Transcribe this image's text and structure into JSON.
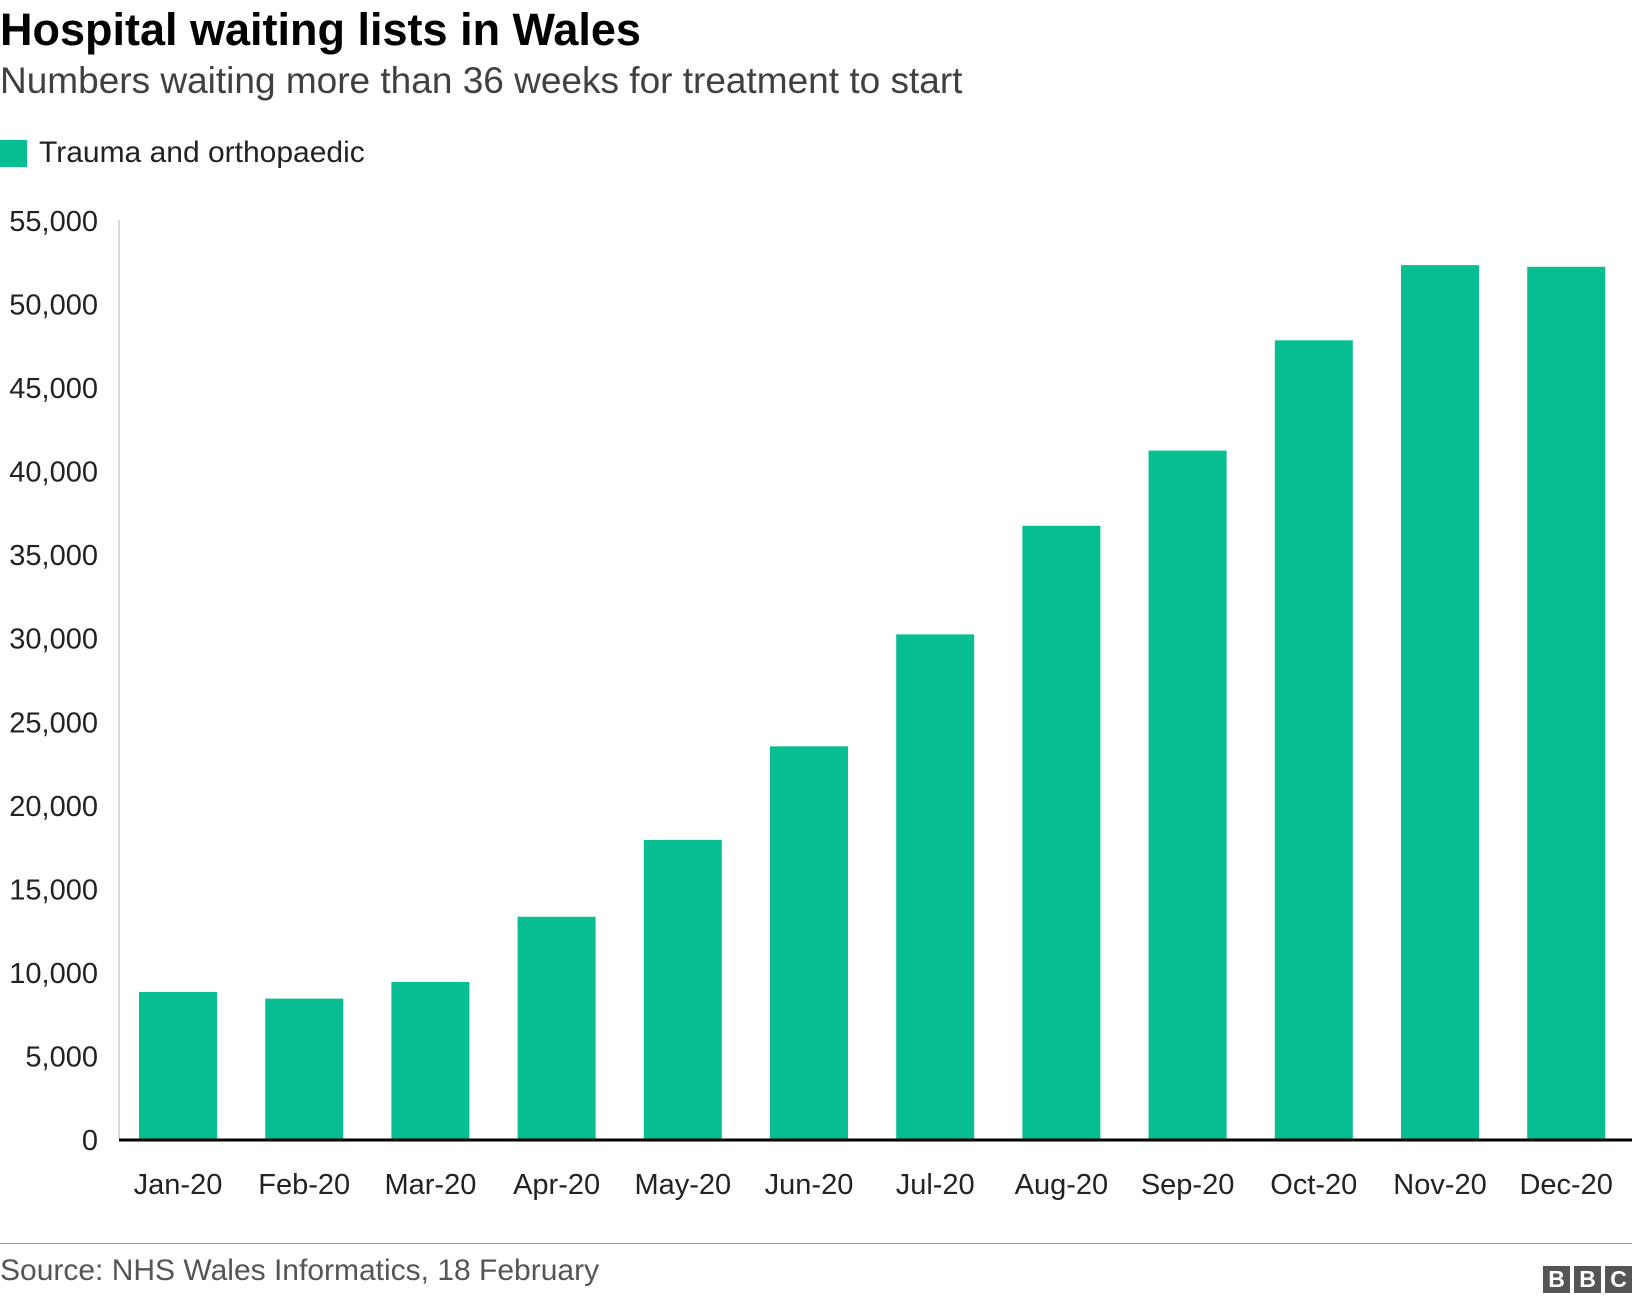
{
  "header": {
    "title": "Hospital waiting lists in Wales",
    "subtitle": "Numbers waiting more than 36 weeks for treatment to start"
  },
  "legend": {
    "label": "Trauma and orthopaedic"
  },
  "colors": {
    "bar": "#07be92",
    "axis": "#000000",
    "tick_text": "#222222"
  },
  "chart_data": {
    "type": "bar",
    "title": "Hospital waiting lists in Wales",
    "subtitle": "Numbers waiting more than 36 weeks for treatment to start",
    "xlabel": "",
    "ylabel": "",
    "categories": [
      "Jan-20",
      "Feb-20",
      "Mar-20",
      "Apr-20",
      "May-20",
      "Jun-20",
      "Jul-20",
      "Aug-20",
      "Sep-20",
      "Oct-20",
      "Nov-20",
      "Dec-20"
    ],
    "series": [
      {
        "name": "Trauma and orthopaedic",
        "values": [
          8800,
          8400,
          9400,
          13300,
          17900,
          23500,
          30200,
          36700,
          41200,
          47800,
          52300,
          52200
        ]
      }
    ],
    "ylim": [
      0,
      55000
    ],
    "yticks": [
      0,
      5000,
      10000,
      15000,
      20000,
      25000,
      30000,
      35000,
      40000,
      45000,
      50000,
      55000
    ],
    "ytick_labels": [
      "0",
      "5,000",
      "10,000",
      "15,000",
      "20,000",
      "25,000",
      "30,000",
      "35,000",
      "40,000",
      "45,000",
      "50,000",
      "55,000"
    ],
    "grid": false,
    "legend_position": "top-left"
  },
  "footer": {
    "source": "Source: NHS Wales Informatics, 18 February",
    "logo_letters": [
      "B",
      "B",
      "C"
    ]
  }
}
